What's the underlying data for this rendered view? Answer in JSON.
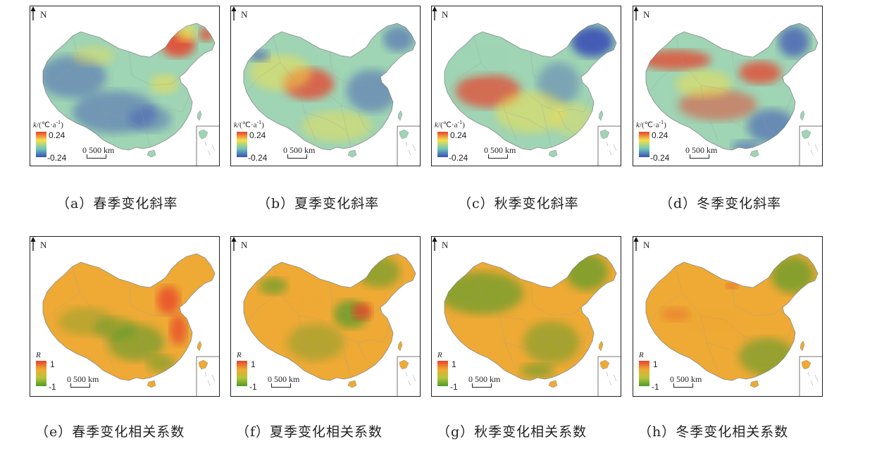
{
  "north_label": "N",
  "row1_legend": {
    "title_var": "k",
    "title_unit": "/(℃·a",
    "title_sup": "-1",
    "title_close": ")",
    "max": "0.24",
    "min": "-0.24"
  },
  "row2_legend": {
    "title_var": "R",
    "max": "1",
    "min": "-1"
  },
  "scale_label": "0  500 km",
  "panels": [
    {
      "caption": "（a）春季变化斜率",
      "palette": "slope",
      "theme": "spring"
    },
    {
      "caption": "（b）夏季变化斜率",
      "palette": "slope",
      "theme": "summer"
    },
    {
      "caption": "（c）秋季变化斜率",
      "palette": "slope",
      "theme": "autumn"
    },
    {
      "caption": "（d）冬季变化斜率",
      "palette": "slope",
      "theme": "winter"
    },
    {
      "caption": "（e）春季变化相关系数",
      "palette": "corr",
      "theme": "spring"
    },
    {
      "caption": "（f）夏季变化相关系数",
      "palette": "corr",
      "theme": "summer"
    },
    {
      "caption": "（g）秋季变化相关系数",
      "palette": "corr",
      "theme": "autumn"
    },
    {
      "caption": "（h）冬季变化相关系数",
      "palette": "corr",
      "theme": "winter"
    }
  ],
  "colors": {
    "slope_high": "#e8412c",
    "slope_mid": "#f5e04a",
    "slope_low": "#3a4fb5",
    "slope_base": "#9fd4b4",
    "corr_high": "#e8412c",
    "corr_mid": "#f0a832",
    "corr_low": "#4f9a2a",
    "corr_base": "#eeaa35"
  }
}
